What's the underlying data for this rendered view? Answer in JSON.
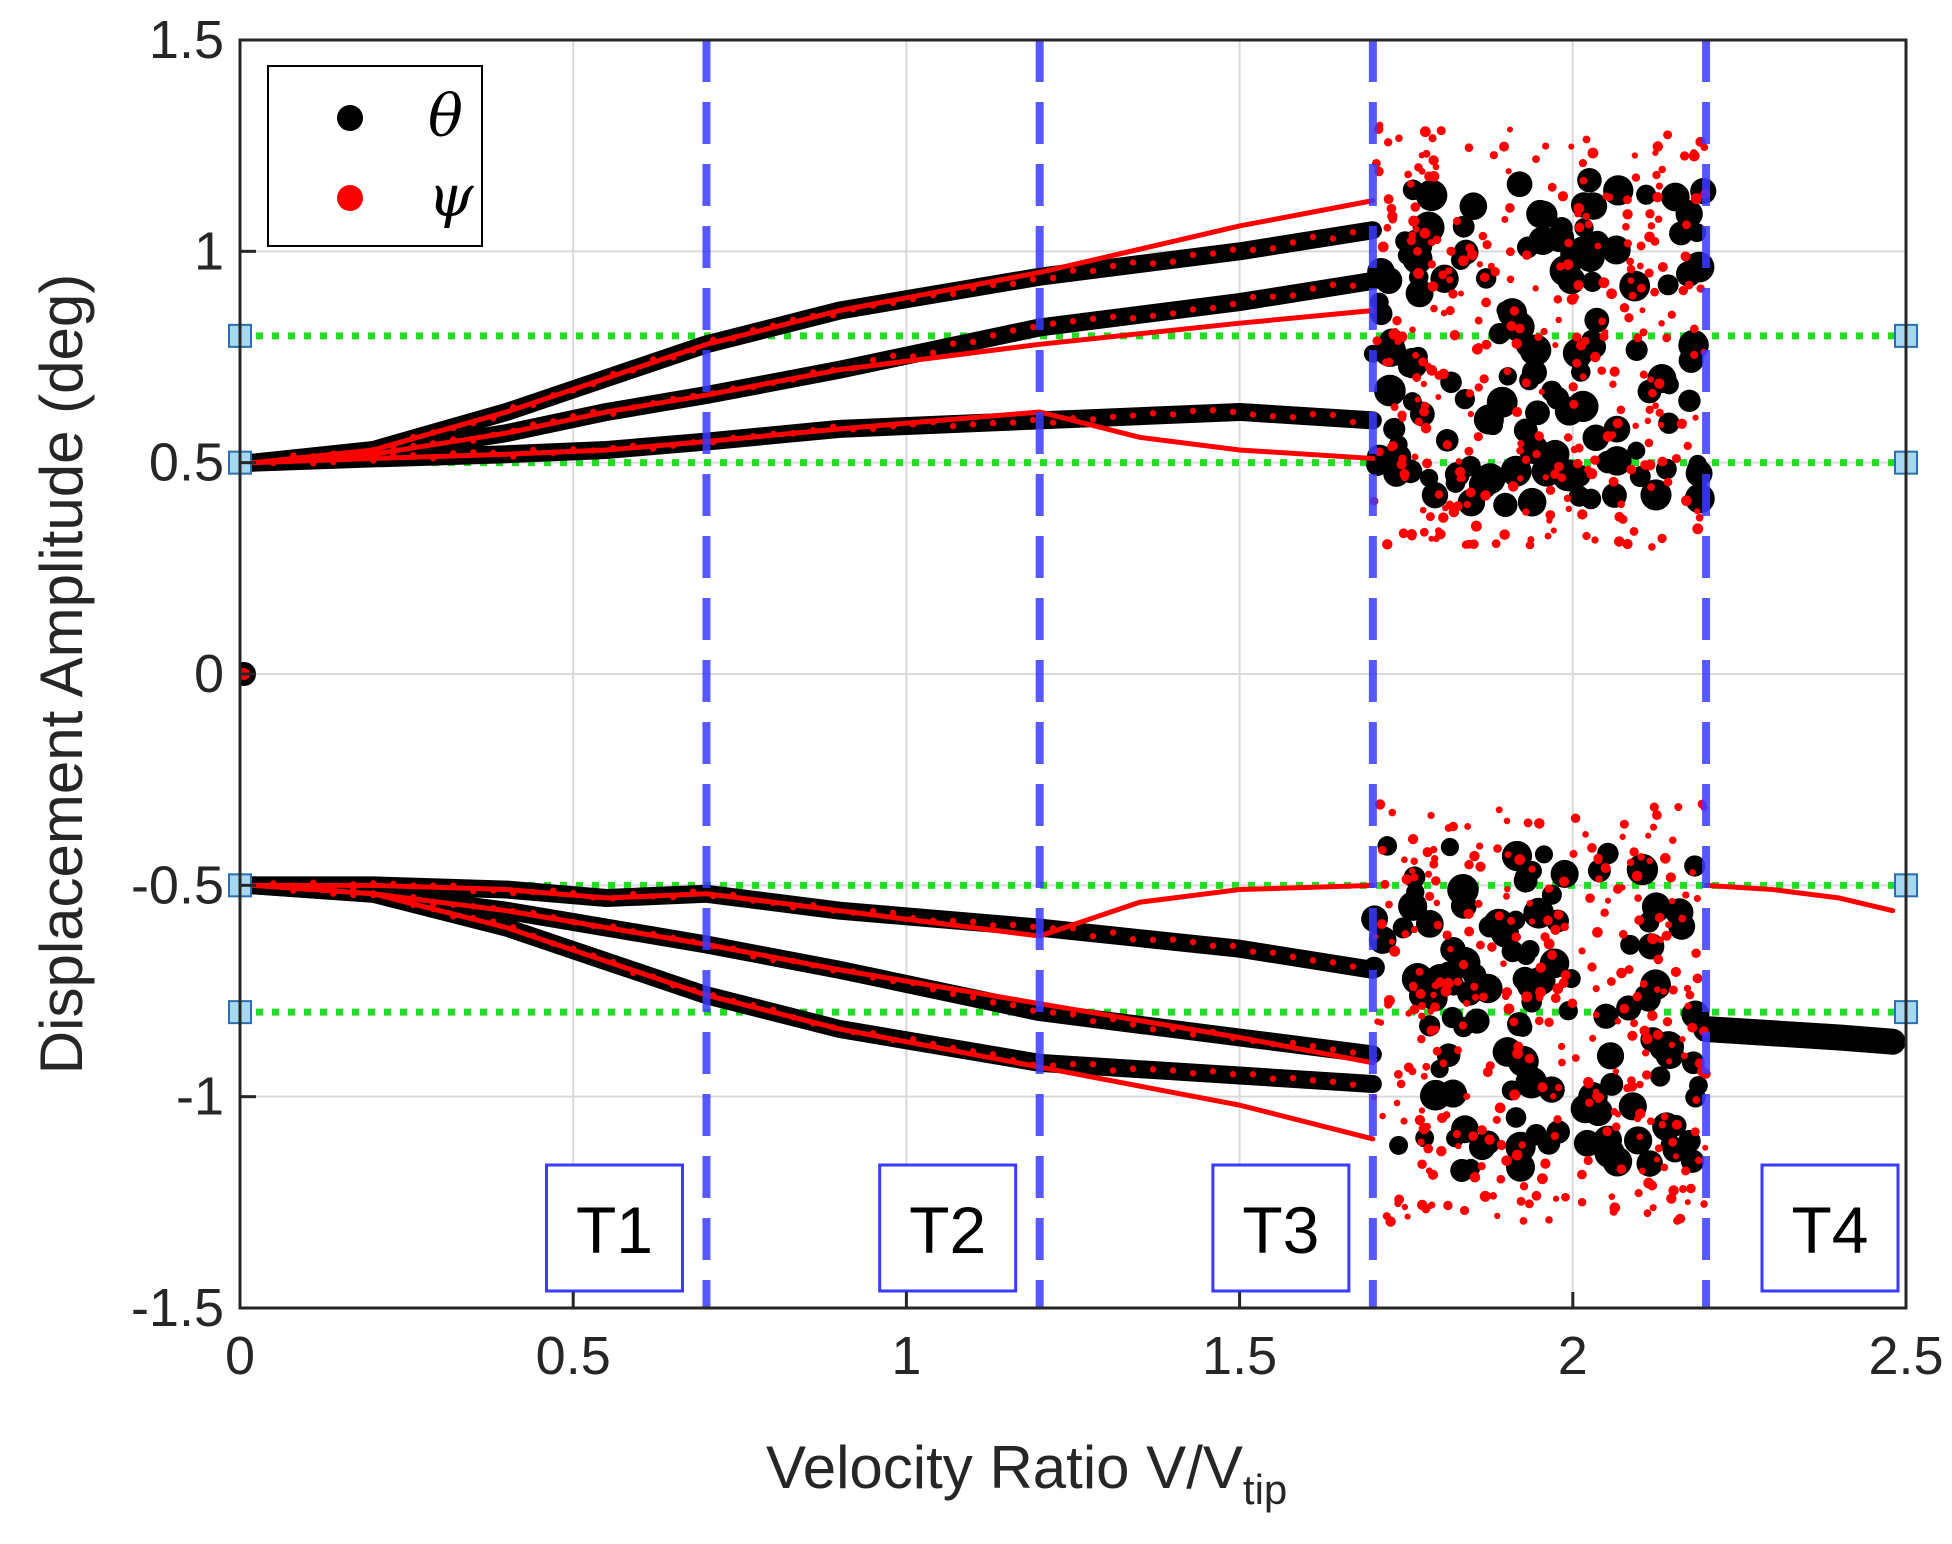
{
  "chart_data": {
    "type": "scatter",
    "title": "",
    "xlabel": "Velocity Ratio V/V",
    "xlabel_subscript": "tip",
    "ylabel": "Displacement Amplitude (deg)",
    "xlim": [
      0,
      2.5
    ],
    "ylim": [
      -1.5,
      1.5
    ],
    "x_ticks": [
      0,
      0.5,
      1,
      1.5,
      2,
      2.5
    ],
    "x_tick_labels": [
      "0",
      "0.5",
      "1",
      "1.5",
      "2",
      "2.5"
    ],
    "y_ticks": [
      -1.5,
      -1,
      -0.5,
      0,
      0.5,
      1,
      1.5
    ],
    "y_tick_labels": [
      "-1.5",
      "-1",
      "-0.5",
      "0",
      "0.5",
      "1",
      "1.5"
    ],
    "grid": true,
    "legend_position": "top-left",
    "colors": {
      "theta": "#000000",
      "psi": "#ff0000",
      "boundary": "#3b3bff",
      "reference": "#22dd22",
      "marker_fill": "#a8d8f0",
      "marker_edge": "#2a6fb0"
    },
    "legend": [
      {
        "symbol": "θ",
        "series": "theta"
      },
      {
        "symbol": "ψ",
        "series": "psi"
      }
    ],
    "series": [
      {
        "name": "theta",
        "symbol": "θ",
        "color": "#000000",
        "branches": [
          {
            "x": [
              0.02,
              0.2,
              0.4,
              0.55,
              0.7,
              0.9,
              1.2,
              1.5,
              1.7
            ],
            "y": [
              0.5,
              0.53,
              0.62,
              0.7,
              0.78,
              0.86,
              0.94,
              1.0,
              1.05
            ]
          },
          {
            "x": [
              0.02,
              0.2,
              0.4,
              0.55,
              0.7,
              0.9,
              1.2,
              1.5,
              1.7
            ],
            "y": [
              0.5,
              0.52,
              0.57,
              0.62,
              0.66,
              0.72,
              0.82,
              0.88,
              0.93
            ]
          },
          {
            "x": [
              0.02,
              0.2,
              0.4,
              0.55,
              0.7,
              0.9,
              1.2,
              1.5,
              1.7
            ],
            "y": [
              0.5,
              0.51,
              0.52,
              0.53,
              0.55,
              0.58,
              0.6,
              0.62,
              0.6
            ]
          },
          {
            "x": [
              0.02,
              0.2,
              0.4,
              0.55,
              0.7,
              0.9,
              1.2,
              1.5,
              1.7
            ],
            "y": [
              -0.5,
              -0.52,
              -0.6,
              -0.68,
              -0.76,
              -0.84,
              -0.92,
              -0.95,
              -0.97
            ]
          },
          {
            "x": [
              0.02,
              0.2,
              0.4,
              0.55,
              0.7,
              0.9,
              1.2,
              1.5,
              1.7
            ],
            "y": [
              -0.5,
              -0.52,
              -0.56,
              -0.6,
              -0.64,
              -0.7,
              -0.8,
              -0.86,
              -0.9
            ]
          },
          {
            "x": [
              0.02,
              0.2,
              0.4,
              0.55,
              0.7,
              0.9,
              1.2,
              1.5,
              1.7
            ],
            "y": [
              -0.5,
              -0.5,
              -0.51,
              -0.53,
              -0.52,
              -0.56,
              -0.6,
              -0.65,
              -0.7
            ]
          },
          {
            "x": [
              2.2,
              2.3,
              2.4,
              2.48
            ],
            "y": [
              -0.84,
              -0.85,
              -0.86,
              -0.87
            ]
          }
        ]
      },
      {
        "name": "psi",
        "symbol": "ψ",
        "color": "#ff0000",
        "branches": [
          {
            "x": [
              0.02,
              0.2,
              0.4,
              0.55,
              0.7,
              0.9,
              1.2,
              1.5,
              1.7
            ],
            "y": [
              0.5,
              0.53,
              0.62,
              0.7,
              0.78,
              0.86,
              0.95,
              1.06,
              1.12
            ]
          },
          {
            "x": [
              0.02,
              0.2,
              0.4,
              0.55,
              0.7,
              0.9,
              1.2,
              1.5,
              1.7
            ],
            "y": [
              0.5,
              0.52,
              0.57,
              0.62,
              0.66,
              0.72,
              0.78,
              0.83,
              0.86
            ]
          },
          {
            "x": [
              0.02,
              0.2,
              0.4,
              0.55,
              0.7,
              0.9,
              1.2,
              1.35,
              1.5,
              1.7
            ],
            "y": [
              0.5,
              0.51,
              0.52,
              0.53,
              0.55,
              0.58,
              0.62,
              0.56,
              0.53,
              0.51
            ]
          },
          {
            "x": [
              0.02,
              0.2,
              0.4,
              0.55,
              0.7,
              0.9,
              1.2,
              1.5,
              1.7
            ],
            "y": [
              -0.5,
              -0.52,
              -0.6,
              -0.68,
              -0.76,
              -0.84,
              -0.93,
              -1.02,
              -1.1
            ]
          },
          {
            "x": [
              0.02,
              0.2,
              0.4,
              0.55,
              0.7,
              0.9,
              1.2,
              1.5,
              1.7
            ],
            "y": [
              -0.5,
              -0.52,
              -0.56,
              -0.6,
              -0.64,
              -0.7,
              -0.78,
              -0.86,
              -0.92
            ]
          },
          {
            "x": [
              0.02,
              0.2,
              0.4,
              0.55,
              0.7,
              0.9,
              1.2,
              1.35,
              1.5,
              1.7
            ],
            "y": [
              -0.5,
              -0.5,
              -0.51,
              -0.53,
              -0.52,
              -0.56,
              -0.62,
              -0.54,
              -0.51,
              -0.5
            ]
          },
          {
            "x": [
              2.2,
              2.3,
              2.4,
              2.48
            ],
            "y": [
              -0.5,
              -0.51,
              -0.53,
              -0.56
            ]
          }
        ],
        "scatter_region": {
          "x_range": [
            1.7,
            2.2
          ],
          "y_ranges": [
            [
              0.3,
              1.3
            ],
            [
              -1.3,
              -0.3
            ]
          ]
        }
      }
    ],
    "origin_points": [
      {
        "x": 0.0,
        "y": 0.0
      }
    ],
    "vertical_lines": [
      {
        "x": 0.7,
        "style": "dashed",
        "color": "#3b3bff"
      },
      {
        "x": 1.2,
        "style": "dashed",
        "color": "#3b3bff"
      },
      {
        "x": 1.7,
        "style": "dashed",
        "color": "#3b3bff"
      },
      {
        "x": 2.2,
        "style": "dashed",
        "color": "#3b3bff"
      }
    ],
    "horizontal_lines": [
      {
        "y": 0.8,
        "style": "dotted",
        "color": "#22dd22"
      },
      {
        "y": 0.5,
        "style": "dotted",
        "color": "#22dd22"
      },
      {
        "y": -0.5,
        "style": "dotted",
        "color": "#22dd22"
      },
      {
        "y": -0.8,
        "style": "dotted",
        "color": "#22dd22"
      }
    ],
    "regions": [
      {
        "label": "T1",
        "x_start": 0.0,
        "x_end": 0.7
      },
      {
        "label": "T2",
        "x_start": 0.7,
        "x_end": 1.2
      },
      {
        "label": "T3",
        "x_start": 1.2,
        "x_end": 1.7
      },
      {
        "label": "T4",
        "x_start": 2.2,
        "x_end": 2.5
      }
    ]
  }
}
